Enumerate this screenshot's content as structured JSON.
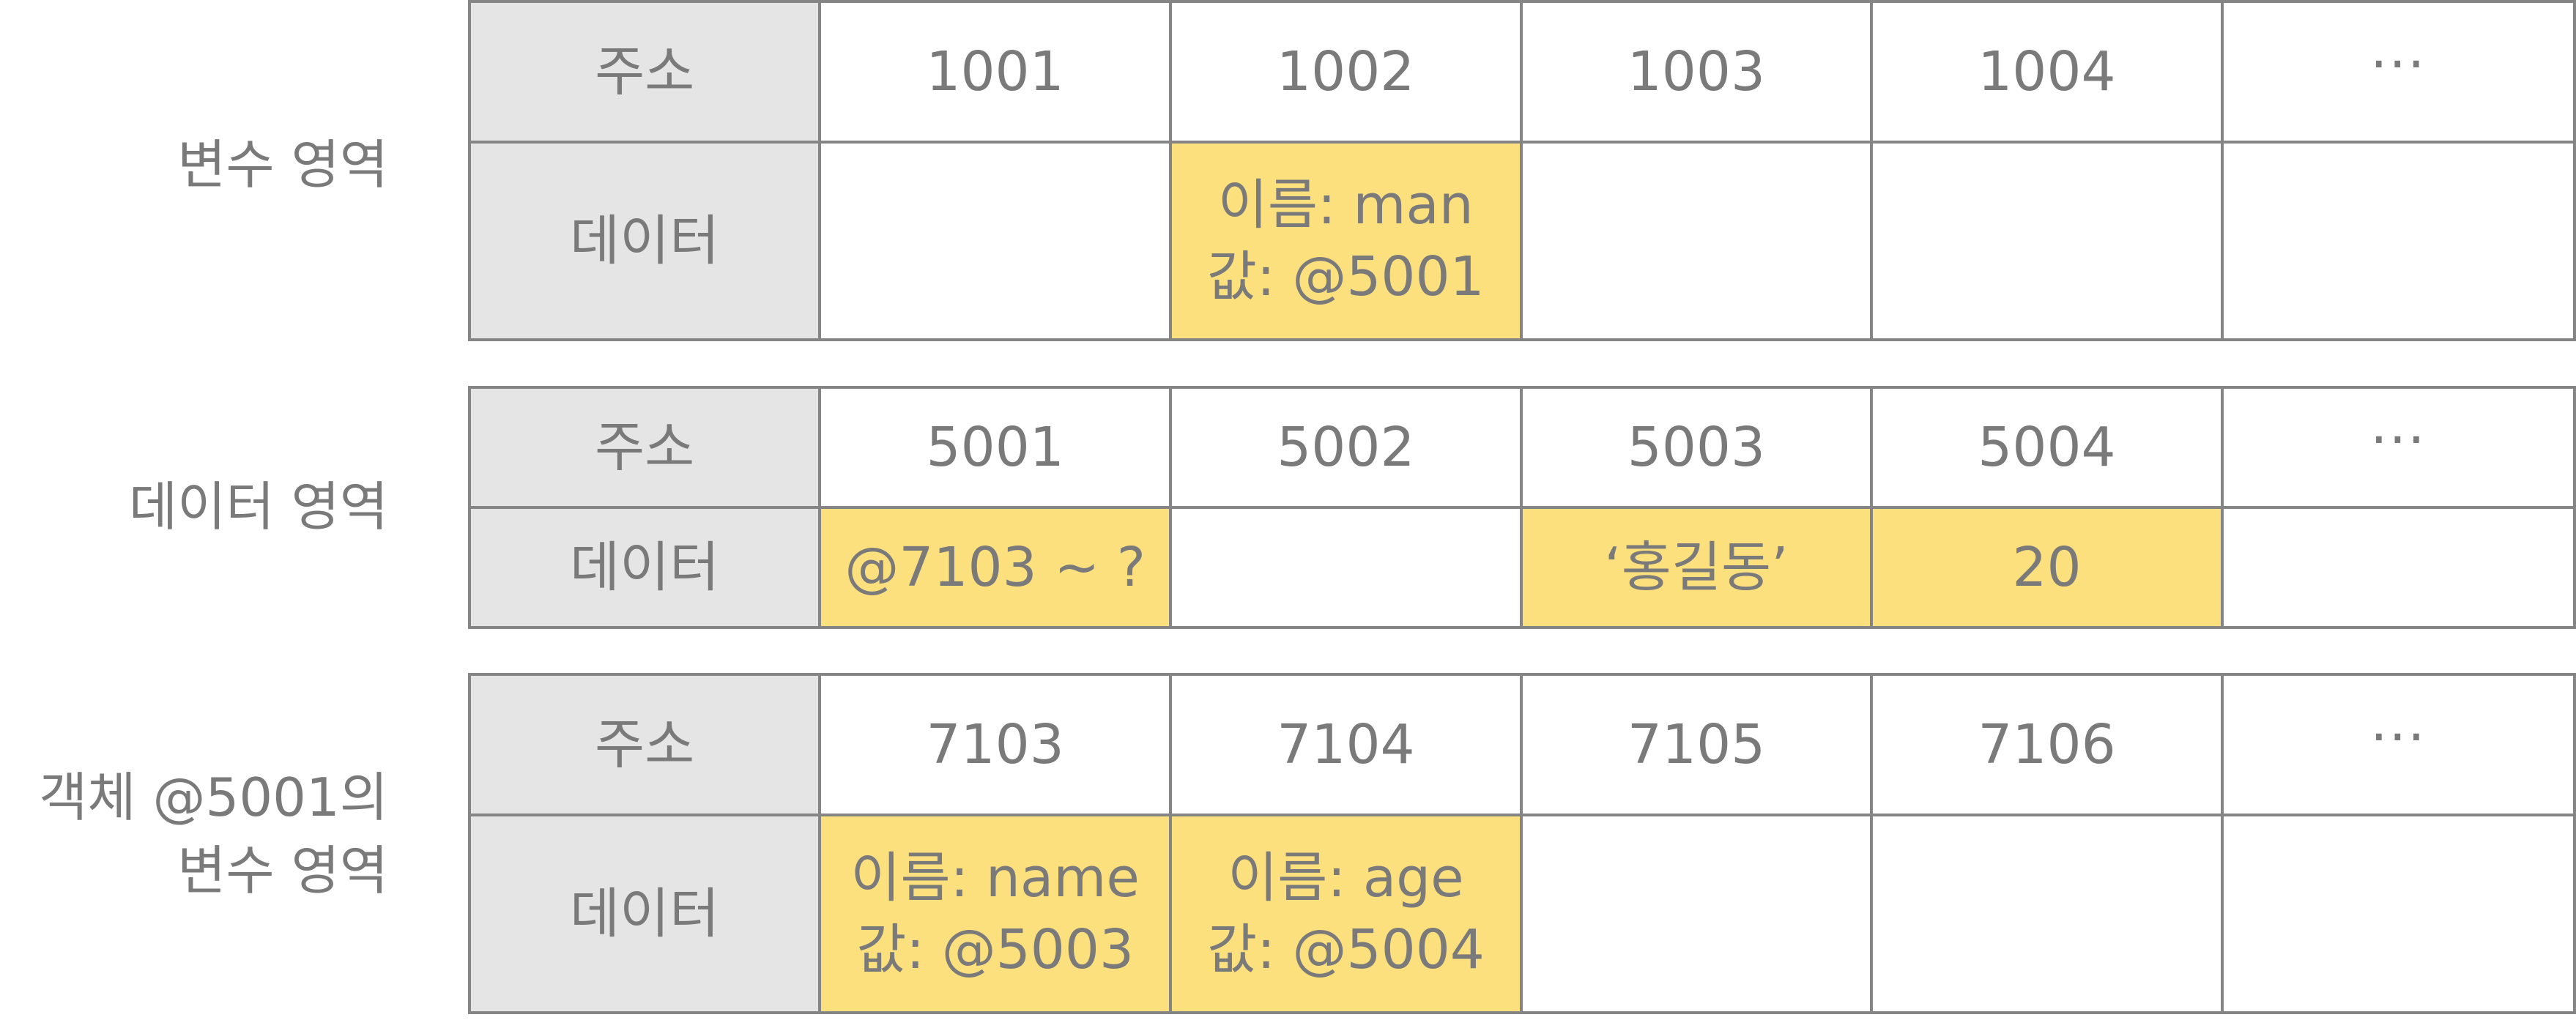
{
  "addr_header": "주소",
  "data_header": "데이터",
  "sections": [
    {
      "label_lines": [
        "변수 영역"
      ],
      "addresses": [
        "1001",
        "1002",
        "1003",
        "1004",
        "···"
      ],
      "cells": [
        {
          "lines": [],
          "highlight": false
        },
        {
          "lines": [
            "이름: man",
            "값: @5001"
          ],
          "highlight": true
        },
        {
          "lines": [],
          "highlight": false
        },
        {
          "lines": [],
          "highlight": false
        },
        {
          "lines": [],
          "highlight": false
        }
      ]
    },
    {
      "label_lines": [
        "데이터 영역"
      ],
      "addresses": [
        "5001",
        "5002",
        "5003",
        "5004",
        "···"
      ],
      "cells": [
        {
          "lines": [
            "@7103 ~ ?"
          ],
          "highlight": true
        },
        {
          "lines": [],
          "highlight": false
        },
        {
          "lines": [
            "‘홍길동’"
          ],
          "highlight": true
        },
        {
          "lines": [
            "20"
          ],
          "highlight": true
        },
        {
          "lines": [],
          "highlight": false
        }
      ]
    },
    {
      "label_lines": [
        "객체 @5001의",
        "변수 영역"
      ],
      "addresses": [
        "7103",
        "7104",
        "7105",
        "7106",
        "···"
      ],
      "cells": [
        {
          "lines": [
            "이름: name",
            "값: @5003"
          ],
          "highlight": true
        },
        {
          "lines": [
            "이름: age",
            "값: @5004"
          ],
          "highlight": true
        },
        {
          "lines": [],
          "highlight": false
        },
        {
          "lines": [],
          "highlight": false
        },
        {
          "lines": [],
          "highlight": false
        }
      ]
    }
  ],
  "colors": {
    "highlight": "#fde07e",
    "header": "#e5e5e5",
    "border": "#858585",
    "text": "#7a7a7a"
  }
}
